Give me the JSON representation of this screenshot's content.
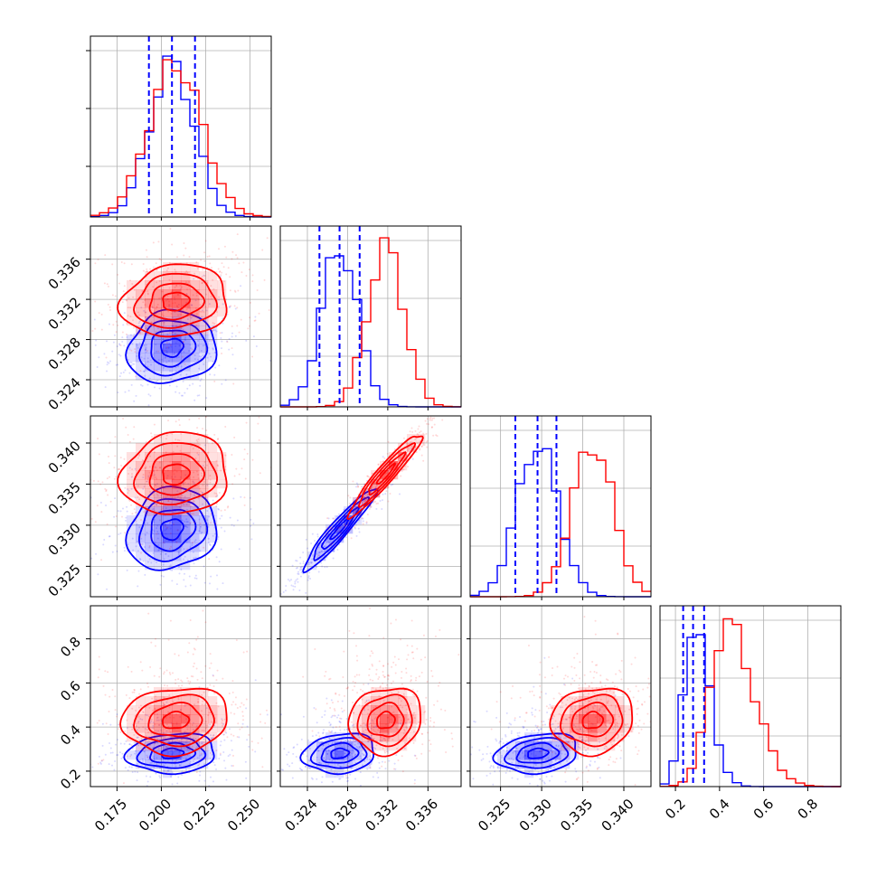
{
  "colors": {
    "series_a": "#0000ff",
    "series_b": "#ff0000",
    "grid": "#b0b0b0"
  },
  "chart_data": {
    "type": "corner",
    "series": [
      {
        "color": "#0000ff",
        "mean": [
          0.206,
          0.3272,
          0.3295,
          0.28
        ],
        "sd": [
          0.0125,
          0.0018,
          0.0025,
          0.045
        ],
        "rho": [
          [
            1,
            0.1,
            0.15,
            0.1
          ],
          [
            0.1,
            1,
            0.95,
            0.15
          ],
          [
            0.15,
            0.95,
            1,
            0.2
          ],
          [
            0.1,
            0.15,
            0.2,
            1
          ]
        ]
      },
      {
        "color": "#ff0000",
        "mean": [
          0.208,
          0.3318,
          0.3362,
          0.43
        ],
        "sd": [
          0.015,
          0.0018,
          0.0025,
          0.075
        ],
        "rho": [
          [
            1,
            0.1,
            0.1,
            0.1
          ],
          [
            0.1,
            1,
            0.95,
            0.1
          ],
          [
            0.1,
            0.95,
            1,
            0.1
          ],
          [
            0.1,
            0.1,
            0.1,
            1
          ]
        ]
      }
    ],
    "quantile_lines": [
      [
        0.193,
        0.206,
        0.219
      ],
      [
        0.3252,
        0.3272,
        0.3292
      ],
      [
        0.3268,
        0.3295,
        0.3318
      ],
      [
        0.235,
        0.28,
        0.33
      ]
    ],
    "axis_ranges": [
      [
        0.16,
        0.262
      ],
      [
        0.3213,
        0.3393
      ],
      [
        0.3213,
        0.3433
      ],
      [
        0.13,
        0.95
      ]
    ],
    "hist_ymax": [
      1.12,
      1.07,
      1.12,
      1.05
    ],
    "tick_values": [
      [
        0.175,
        0.2,
        0.225,
        0.25
      ],
      [
        0.324,
        0.328,
        0.332,
        0.336
      ],
      [
        0.325,
        0.33,
        0.335,
        0.34
      ],
      [
        0.2,
        0.4,
        0.6,
        0.8
      ]
    ],
    "tick_labels": [
      [
        "0.175",
        "0.200",
        "0.225",
        "0.250"
      ],
      [
        "0.324",
        "0.328",
        "0.332",
        "0.336"
      ],
      [
        "0.325",
        "0.330",
        "0.335",
        "0.340"
      ],
      [
        "0.2",
        "0.4",
        "0.6",
        "0.8"
      ]
    ],
    "hist_grid_fractions": [
      0.28,
      0.6,
      0.92
    ],
    "grid": true,
    "contour_levels_sigma": [
      0.5,
      1.0,
      1.5,
      2.0
    ]
  }
}
